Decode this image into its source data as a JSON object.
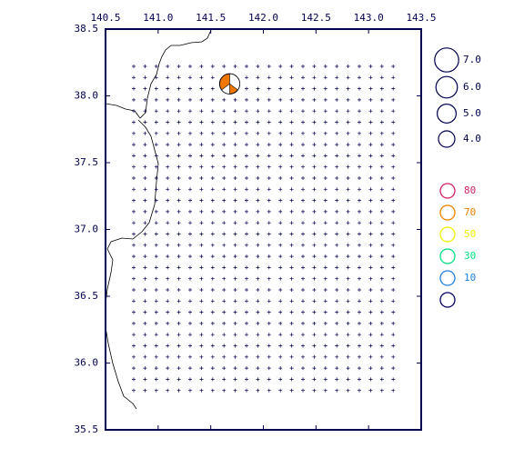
{
  "chart_data": {
    "type": "map",
    "xlim": [
      140.5,
      143.5
    ],
    "ylim": [
      35.5,
      38.5
    ],
    "xticks": [
      {
        "value": 140.5,
        "label": "140.5"
      },
      {
        "value": 141,
        "label": "141.0"
      },
      {
        "value": 141.5,
        "label": "141.5"
      },
      {
        "value": 142,
        "label": "142.0"
      },
      {
        "value": 142.5,
        "label": "142.5"
      },
      {
        "value": 143,
        "label": "143.0"
      },
      {
        "value": 143.5,
        "label": "143.5"
      }
    ],
    "yticks": [
      38.5,
      {
        "value": 38,
        "label": "38.0"
      },
      37.5,
      {
        "value": 37,
        "label": "37.0"
      },
      36.5,
      {
        "value": 36,
        "label": "36.0"
      },
      35.5
    ],
    "events": {
      "x": [
        141.68
      ],
      "y": [
        38.09
      ],
      "size": [
        5.5
      ],
      "color": "#f07800"
    },
    "magnitude_legend": [
      {
        "value": 7,
        "label": "7.0"
      },
      {
        "value": 6,
        "label": "6.0"
      },
      {
        "value": 5,
        "label": "5.0"
      },
      {
        "value": 4,
        "label": "4.0"
      }
    ],
    "depth_legend": {
      "labels": [
        80,
        70,
        50,
        30,
        10,
        null
      ],
      "colors": [
        "#d0206a",
        "#f08000",
        "#f0f000",
        "#00e080",
        "#2080e0",
        "#000060"
      ]
    }
  }
}
